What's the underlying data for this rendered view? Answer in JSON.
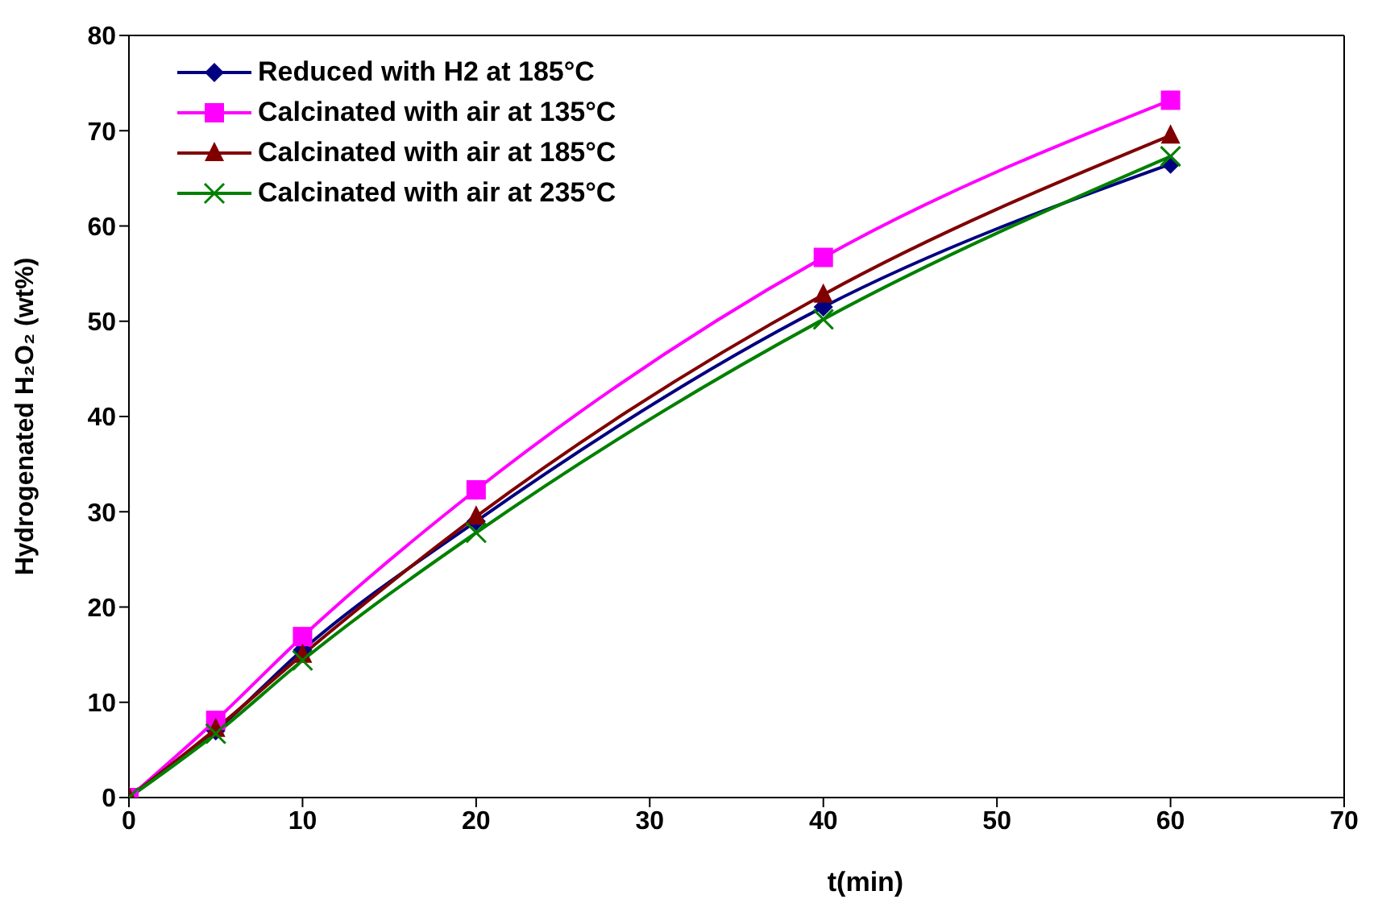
{
  "chart_data": {
    "type": "line",
    "xlabel": "t(min)",
    "ylabel": "Hydrogenated H₂O₂ (wt%)",
    "x": [
      0,
      5,
      10,
      20,
      40,
      60
    ],
    "series": [
      {
        "name": "Reduced with H2 at 185°C",
        "color": "#000080",
        "marker": "diamond",
        "values": [
          0,
          7,
          15.5,
          29,
          51.5,
          66.5
        ]
      },
      {
        "name": "Calcinated with air at 135°C",
        "color": "#ff00ff",
        "marker": "square",
        "values": [
          0,
          8.1,
          16.9,
          32.3,
          56.7,
          73.2
        ]
      },
      {
        "name": "Calcinated with air at 185°C",
        "color": "#800000",
        "marker": "triangle",
        "values": [
          0,
          7.2,
          15,
          29.5,
          52.8,
          69.5
        ]
      },
      {
        "name": "Calcinated with air at 235°C",
        "color": "#008000",
        "marker": "cross",
        "values": [
          0,
          6.7,
          14.4,
          27.8,
          50.2,
          67.3
        ]
      }
    ],
    "xlim": [
      0,
      70
    ],
    "xticks": [
      0,
      10,
      20,
      30,
      40,
      50,
      60,
      70
    ],
    "ylim": [
      0,
      80
    ],
    "yticks": [
      0,
      10,
      20,
      30,
      40,
      50,
      60,
      70,
      80
    ],
    "grid": false,
    "legend": "top left"
  }
}
